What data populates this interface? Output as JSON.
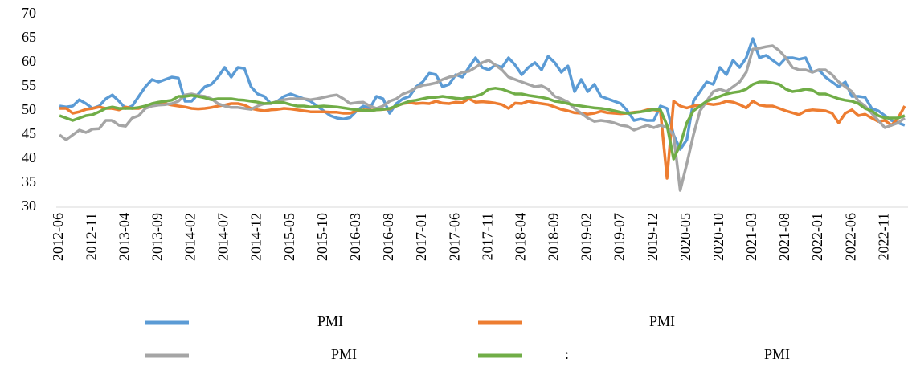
{
  "chart_data": {
    "type": "line",
    "categories": [
      "2012-06",
      null,
      null,
      null,
      null,
      "2012-11",
      null,
      null,
      null,
      null,
      "2013-04",
      null,
      null,
      null,
      null,
      "2013-09",
      null,
      null,
      null,
      null,
      "2014-02",
      null,
      null,
      null,
      null,
      "2014-07",
      null,
      null,
      null,
      null,
      "2014-12",
      null,
      null,
      null,
      null,
      "2015-05",
      null,
      null,
      null,
      null,
      "2015-10",
      null,
      null,
      null,
      null,
      "2016-03",
      null,
      null,
      null,
      null,
      "2016-08",
      null,
      null,
      null,
      null,
      "2017-01",
      null,
      null,
      null,
      null,
      "2017-06",
      null,
      null,
      null,
      null,
      "2017-11",
      null,
      null,
      null,
      null,
      "2018-04",
      null,
      null,
      null,
      null,
      "2018-09",
      null,
      null,
      null,
      null,
      "2019-02",
      null,
      null,
      null,
      null,
      "2019-07",
      null,
      null,
      null,
      null,
      "2019-12",
      null,
      null,
      null,
      null,
      "2020-05",
      null,
      null,
      null,
      null,
      "2020-10",
      null,
      null,
      null,
      null,
      "2021-03",
      null,
      null,
      null,
      null,
      "2021-08",
      null,
      null,
      null,
      null,
      "2022-01",
      null,
      null,
      null,
      null,
      "2022-06",
      null,
      null,
      null,
      null,
      "2022-11",
      null,
      null,
      null
    ],
    "series": [
      {
        "name": "PMI",
        "color": "#5b9bd5",
        "values": [
          51,
          50.8,
          51,
          52.3,
          51.5,
          50.5,
          51,
          52.5,
          53.3,
          52,
          50.5,
          51,
          53,
          55,
          56.5,
          56,
          56.5,
          57,
          56.8,
          52,
          52,
          53.5,
          55,
          55.5,
          57,
          59,
          57,
          59,
          58.8,
          55,
          53.5,
          53,
          51.5,
          52,
          53,
          53.5,
          53,
          52.5,
          52,
          51,
          50,
          49,
          48.5,
          48.3,
          48.6,
          50,
          51,
          50.5,
          53,
          52.5,
          49.5,
          51.5,
          52.5,
          53,
          55,
          56,
          57.8,
          57.5,
          55,
          55.5,
          57.5,
          57,
          59,
          61,
          59,
          58.5,
          59.5,
          59,
          61,
          59.5,
          57.5,
          59,
          60,
          58.5,
          61.3,
          60,
          58,
          59.3,
          54,
          56.5,
          54,
          55.5,
          53,
          52.5,
          52,
          51.5,
          50,
          48,
          48.3,
          48,
          48,
          51,
          50.5,
          45,
          42,
          44,
          52,
          54,
          56,
          55.5,
          59,
          57.5,
          60.5,
          59,
          61,
          65,
          61,
          61.5,
          60.5,
          59.5,
          61,
          61,
          60.7,
          61,
          58,
          58.5,
          57,
          56,
          55,
          56,
          53,
          53,
          52.8,
          50.5,
          50,
          49,
          48,
          47.5,
          47
        ]
      },
      {
        "name": "PMI",
        "color": "#ed7d31",
        "values": [
          50.5,
          50.5,
          49.5,
          49.8,
          50.3,
          50.5,
          50.8,
          50.5,
          50.5,
          50.2,
          50.8,
          50.5,
          50.5,
          51,
          51.3,
          51.5,
          51.5,
          51.2,
          51,
          50.8,
          50.5,
          50.4,
          50.5,
          50.7,
          51,
          51.2,
          51.5,
          51.5,
          51.2,
          50.5,
          50.2,
          50,
          50.2,
          50.3,
          50.5,
          50.4,
          50.2,
          50,
          49.8,
          49.8,
          49.8,
          49.7,
          49.7,
          49.5,
          49.5,
          50,
          50.2,
          50.1,
          50.2,
          50.3,
          50.4,
          51,
          51.5,
          51.7,
          51.5,
          51.6,
          51.5,
          52,
          51.6,
          51.5,
          51.8,
          51.7,
          52.5,
          51.8,
          51.9,
          51.8,
          51.6,
          51.3,
          50.5,
          51.6,
          51.5,
          52,
          51.7,
          51.5,
          51.3,
          50.8,
          50.3,
          50,
          49.6,
          49.5,
          49.3,
          49.5,
          49.9,
          49.6,
          49.5,
          49.4,
          49.5,
          49.7,
          49.8,
          50.2,
          50.2,
          50,
          36,
          52,
          51,
          50.6,
          51,
          51.2,
          51.5,
          51.3,
          51.5,
          52,
          51.8,
          51.3,
          50.6,
          52,
          51.2,
          51,
          51,
          50.5,
          50,
          49.6,
          49.2,
          50,
          50.2,
          50.1,
          50,
          49.5,
          47.5,
          49.5,
          50.2,
          49,
          49.3,
          48.5,
          47.8,
          48,
          47,
          48.5,
          51
        ]
      },
      {
        "name": "PMI",
        "color": "#a5a5a5",
        "values": [
          45,
          44,
          45,
          46,
          45.5,
          46.2,
          46.3,
          48,
          48,
          47,
          46.8,
          48.5,
          49,
          50.5,
          51,
          51.2,
          51.3,
          51.5,
          52,
          53.3,
          53.5,
          53.2,
          53,
          52.5,
          51.5,
          51,
          50.7,
          50.7,
          50.5,
          50.3,
          51,
          51.5,
          51.5,
          52,
          52.3,
          52.5,
          52.5,
          52.5,
          52.3,
          52.5,
          52.8,
          53.1,
          53.3,
          52.5,
          51.5,
          51.7,
          51.8,
          51,
          50.5,
          51,
          52,
          52.5,
          53.5,
          54,
          54.8,
          55.3,
          55.5,
          55.8,
          56.5,
          57,
          57.3,
          58,
          58.2,
          59,
          60,
          60.5,
          59.5,
          58.5,
          57,
          56.5,
          56,
          55.5,
          55,
          55.2,
          54.5,
          53,
          52.5,
          51.8,
          50.5,
          49.5,
          48.5,
          47.8,
          48,
          47.8,
          47.5,
          47,
          46.8,
          46,
          46.5,
          47,
          46.5,
          47,
          46.5,
          45,
          33.5,
          39,
          45,
          50,
          52,
          54,
          54.5,
          54,
          55,
          56,
          58,
          62.8,
          63,
          63.3,
          63.5,
          62.5,
          61,
          59,
          58.5,
          58.5,
          58,
          58.5,
          58.5,
          57.5,
          56,
          55,
          54,
          52,
          51,
          49.5,
          48,
          46.5,
          47,
          47.5,
          48.5
        ]
      },
      {
        "name": ":                                                      PMI",
        "color": "#70ad47",
        "values": [
          49,
          48.5,
          48,
          48.5,
          49,
          49.2,
          49.8,
          50.5,
          50.8,
          50.5,
          50.5,
          50.5,
          50.7,
          51,
          51.5,
          51.8,
          52,
          52.2,
          53,
          53,
          53.2,
          53,
          52.7,
          52.3,
          52.5,
          52.5,
          52.5,
          52.3,
          52.2,
          52,
          51.8,
          51.5,
          51.6,
          51.8,
          51.7,
          51.3,
          51,
          51,
          50.8,
          50.9,
          51,
          50.9,
          50.8,
          50.6,
          50.4,
          50.2,
          50.1,
          50,
          50.2,
          50.3,
          50.5,
          51,
          51.5,
          52,
          52.2,
          52.5,
          52.8,
          52.8,
          53,
          52.8,
          52.6,
          52.5,
          52.8,
          53,
          53.5,
          54.5,
          54.7,
          54.5,
          54,
          53.5,
          53.5,
          53.2,
          53,
          52.8,
          52.5,
          52,
          51.8,
          51.5,
          51.2,
          51,
          50.8,
          50.6,
          50.5,
          50.3,
          50,
          49.7,
          49.5,
          49.6,
          49.8,
          50,
          50.3,
          50.2,
          47,
          40,
          43,
          47.5,
          50,
          51,
          52,
          52.5,
          53,
          53.5,
          53.8,
          54,
          54.5,
          55.5,
          56,
          56,
          55.8,
          55.5,
          54.5,
          54,
          54.2,
          54.5,
          54.3,
          53.5,
          53.5,
          53,
          52.5,
          52.2,
          52,
          51.5,
          50.5,
          50,
          49,
          48.5,
          48.5,
          48.5,
          49
        ]
      }
    ],
    "ylim": [
      30,
      70
    ],
    "yticks": [
      30,
      35,
      40,
      45,
      50,
      55,
      60,
      65,
      70
    ],
    "grid": false
  }
}
